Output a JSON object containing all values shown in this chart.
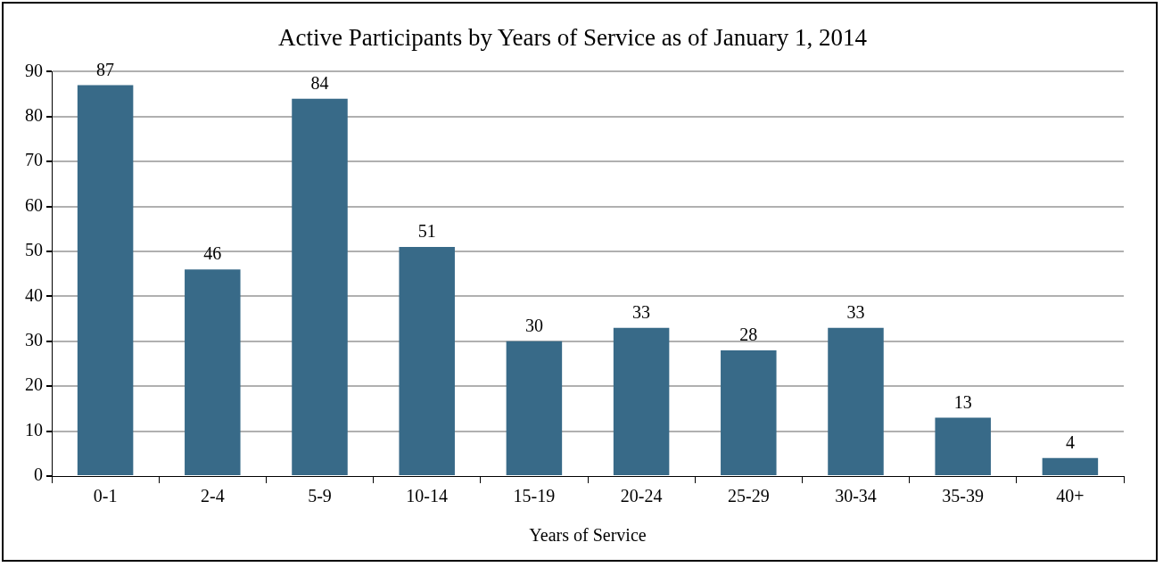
{
  "chart_data": {
    "type": "bar",
    "title": "Active Participants by Years of Service as of January 1, 2014",
    "xlabel": "Years of Service",
    "categories": [
      "0-1",
      "2-4",
      "5-9",
      "10-14",
      "15-19",
      "20-24",
      "25-29",
      "30-34",
      "35-39",
      "40+"
    ],
    "values": [
      87,
      46,
      84,
      51,
      30,
      33,
      28,
      33,
      13,
      4
    ],
    "color": "#386a88",
    "ylim": [
      0,
      90
    ],
    "yticks": [
      0,
      10,
      20,
      30,
      40,
      50,
      60,
      70,
      80,
      90
    ],
    "grid": "y",
    "data_labels": true
  }
}
